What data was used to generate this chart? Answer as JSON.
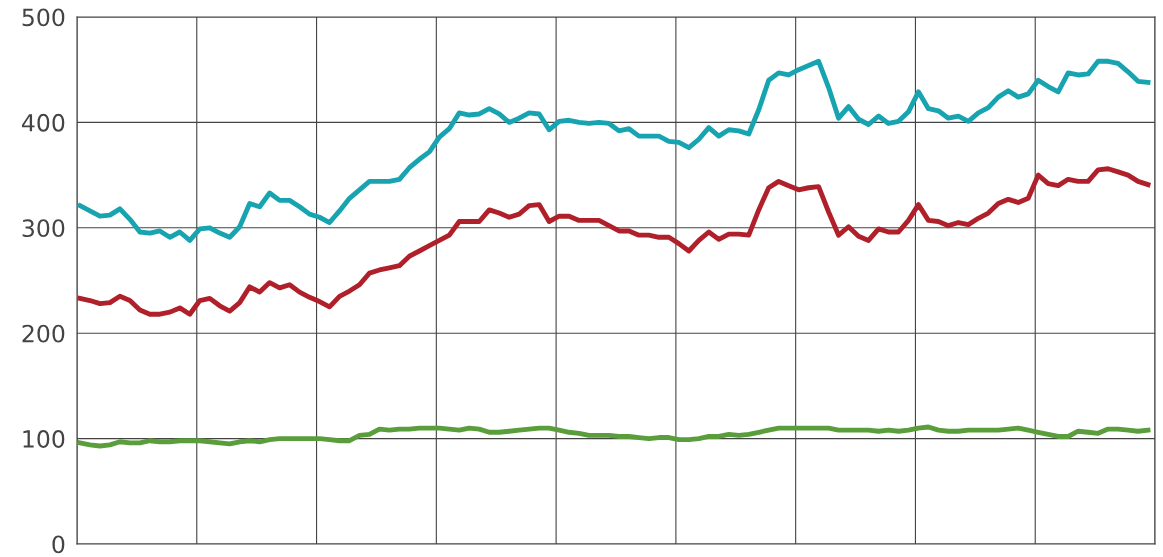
{
  "chart_data": {
    "type": "line",
    "categories": [
      null,
      null,
      null,
      null,
      null,
      null,
      null,
      null,
      null,
      null,
      null,
      null,
      null,
      null,
      null,
      null,
      null,
      null,
      null,
      null,
      null,
      null,
      null,
      null,
      null,
      null,
      null,
      null,
      null,
      null,
      null,
      null,
      null,
      null,
      null,
      null,
      null,
      null,
      null,
      null,
      null,
      null,
      null,
      null,
      null,
      null,
      null,
      null,
      null,
      null,
      null,
      null,
      null,
      null,
      null,
      null,
      null,
      null,
      null,
      null,
      null,
      null,
      null,
      null,
      null,
      null,
      null,
      null,
      null,
      null,
      null,
      null,
      null,
      null,
      null,
      null,
      null,
      null,
      null,
      null,
      null,
      null,
      null,
      null,
      null,
      null,
      null,
      null,
      null,
      null,
      null,
      null,
      null,
      null,
      null,
      null,
      null,
      null,
      null,
      null,
      null,
      null,
      null,
      null,
      null,
      null,
      null,
      null
    ],
    "ylim": [
      0,
      500
    ],
    "yticks": [
      0,
      100,
      200,
      300,
      400,
      500
    ],
    "grid": true,
    "marker": "none",
    "line_style": "solid",
    "tick_labels": "y",
    "series": [
      {
        "color": "#17a3b0",
        "values": [
          321,
          316,
          311,
          312,
          318,
          308,
          296,
          295,
          297,
          291,
          296,
          288,
          299,
          300,
          295,
          291,
          301,
          323,
          320,
          333,
          326,
          326,
          320,
          313,
          310,
          305,
          316,
          328,
          336,
          344,
          344,
          344,
          346,
          357,
          365,
          372,
          386,
          394,
          409,
          407,
          408,
          413,
          408,
          400,
          404,
          409,
          408,
          393,
          401,
          402,
          400,
          399,
          400,
          399,
          392,
          394,
          387,
          387,
          387,
          382,
          381,
          376,
          384,
          395,
          387,
          393,
          392,
          389,
          412,
          440,
          447,
          445,
          450,
          454,
          458,
          433,
          404,
          415,
          403,
          398,
          406,
          399,
          401,
          410,
          429,
          413,
          411,
          404,
          406,
          401,
          409,
          414,
          424,
          430,
          424,
          427,
          440,
          434,
          429,
          447,
          445,
          446,
          458,
          458,
          456,
          448,
          439,
          438
        ]
      },
      {
        "color": "#b0202a",
        "values": [
          233,
          231,
          228,
          229,
          235,
          231,
          222,
          218,
          218,
          220,
          224,
          218,
          231,
          233,
          226,
          221,
          229,
          244,
          239,
          248,
          243,
          246,
          239,
          234,
          230,
          225,
          235,
          240,
          246,
          257,
          260,
          262,
          264,
          273,
          278,
          283,
          288,
          293,
          306,
          306,
          306,
          317,
          314,
          310,
          313,
          321,
          322,
          306,
          311,
          311,
          307,
          307,
          307,
          302,
          297,
          297,
          293,
          293,
          291,
          291,
          285,
          278,
          288,
          296,
          289,
          294,
          294,
          293,
          317,
          338,
          344,
          340,
          336,
          338,
          339,
          315,
          293,
          301,
          292,
          288,
          299,
          296,
          296,
          307,
          322,
          307,
          306,
          302,
          305,
          303,
          309,
          314,
          323,
          327,
          324,
          328,
          350,
          342,
          340,
          346,
          344,
          344,
          355,
          356,
          353,
          350,
          344,
          341
        ]
      },
      {
        "color": "#5a9e3c",
        "values": [
          96,
          94,
          93,
          94,
          97,
          96,
          96,
          98,
          97,
          97,
          98,
          98,
          98,
          97,
          96,
          95,
          97,
          98,
          97,
          99,
          100,
          100,
          100,
          100,
          100,
          99,
          98,
          98,
          103,
          104,
          109,
          108,
          109,
          109,
          110,
          110,
          110,
          109,
          108,
          110,
          109,
          106,
          106,
          107,
          108,
          109,
          110,
          110,
          108,
          106,
          105,
          103,
          103,
          103,
          102,
          102,
          101,
          100,
          101,
          101,
          99,
          99,
          100,
          102,
          102,
          104,
          103,
          104,
          106,
          108,
          110,
          110,
          110,
          110,
          110,
          110,
          108,
          108,
          108,
          108,
          107,
          108,
          107,
          108,
          110,
          111,
          108,
          107,
          107,
          108,
          108,
          108,
          108,
          109,
          110,
          108,
          106,
          104,
          102,
          102,
          107,
          106,
          105,
          109,
          109,
          108,
          107,
          108
        ]
      }
    ]
  }
}
